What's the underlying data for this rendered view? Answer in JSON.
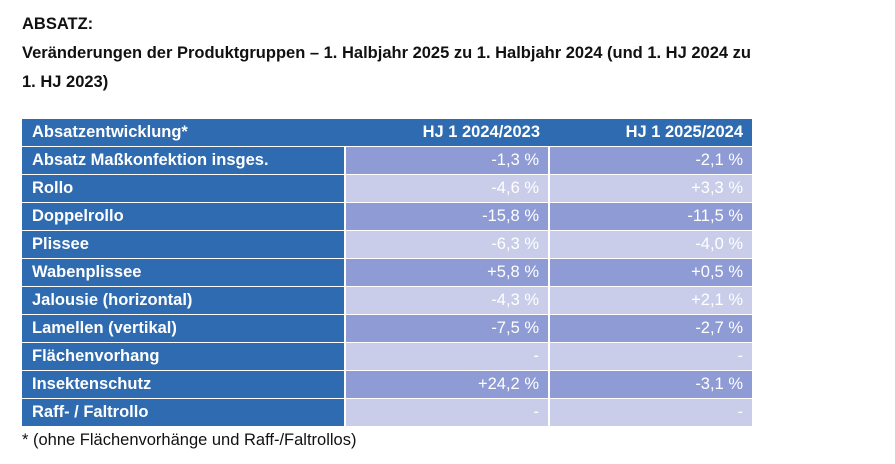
{
  "heading": {
    "label": "ABSATZ:",
    "line1": "Veränderungen der Produktgruppen – 1. Halbjahr 2025 zu 1. Halbjahr 2024 (und 1. HJ 2024 zu",
    "line2": "1. HJ 2023)"
  },
  "table": {
    "headers": [
      "Absatzentwicklung*",
      "HJ 1 2024/2023",
      "HJ 1 2025/2024"
    ],
    "rows": [
      {
        "label": "Absatz Maßkonfektion insges.",
        "v1": "-1,3 %",
        "v2": "-2,1 %"
      },
      {
        "label": "Rollo",
        "v1": "-4,6 %",
        "v2": "+3,3 %"
      },
      {
        "label": "Doppelrollo",
        "v1": "-15,8 %",
        "v2": "-11,5 %"
      },
      {
        "label": "Plissee",
        "v1": "-6,3 %",
        "v2": "-4,0 %"
      },
      {
        "label": "Wabenplissee",
        "v1": "+5,8 %",
        "v2": "+0,5 %"
      },
      {
        "label": "Jalousie (horizontal)",
        "v1": "-4,3 %",
        "v2": "+2,1 %"
      },
      {
        "label": "Lamellen (vertikal)",
        "v1": "-7,5 %",
        "v2": "-2,7 %"
      },
      {
        "label": "Flächenvorhang",
        "v1": "-",
        "v2": "-"
      },
      {
        "label": "Insektenschutz",
        "v1": "+24,2 %",
        "v2": "-3,1 %"
      },
      {
        "label": "Raff- / Faltrollo",
        "v1": "-",
        "v2": "-"
      }
    ]
  },
  "footnote": "* (ohne Flächenvorhänge und Raff-/Faltrollos)",
  "colors": {
    "header_blue": "#2e6bb0",
    "value_dark": "#8e9bd4",
    "value_light": "#c9cde9"
  }
}
